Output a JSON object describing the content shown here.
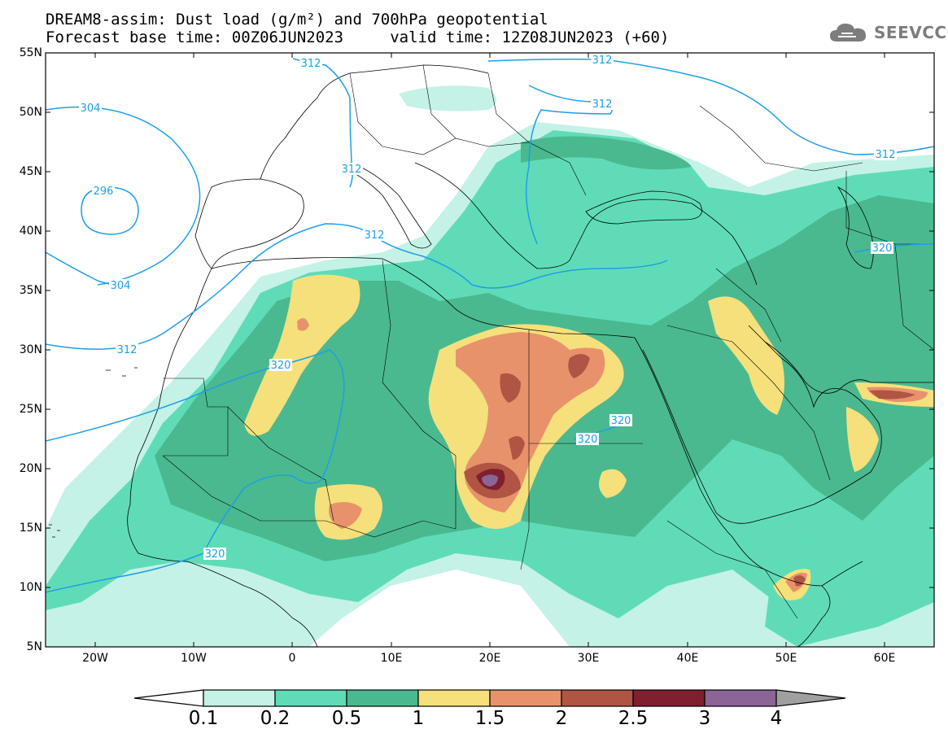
{
  "title": {
    "line1": "DREAM8-assim: Dust load (g/m²) and 700hPa geopotential",
    "line2": "Forecast base time: 00Z06JUN2023     valid time: 12Z08JUN2023 (+60)"
  },
  "logo": {
    "text": "SEEVCCC",
    "icon": "cloud-icon"
  },
  "axes": {
    "lat_labels": [
      "55N",
      "50N",
      "45N",
      "40N",
      "35N",
      "30N",
      "25N",
      "20N",
      "15N",
      "10N",
      "5N"
    ],
    "lon_labels": [
      "20W",
      "10W",
      "0",
      "10E",
      "20E",
      "30E",
      "40E",
      "50E",
      "60E"
    ]
  },
  "contours": {
    "color": "#1e9fe6",
    "labels": [
      "312",
      "312",
      "312",
      "304",
      "296",
      "312",
      "312",
      "304",
      "312",
      "320",
      "320",
      "320",
      "320",
      "320",
      "312"
    ]
  },
  "colorbar": {
    "colors": [
      "#ffffff",
      "#c4f2e6",
      "#5fdcb7",
      "#4ab98f",
      "#f5e07c",
      "#e8926b",
      "#b05444",
      "#7f1f2f",
      "#8a6596",
      "#a0a0a0"
    ],
    "labels": [
      "0.1",
      "0.2",
      "0.5",
      "1",
      "1.5",
      "2",
      "2.5",
      "3",
      "4"
    ]
  }
}
